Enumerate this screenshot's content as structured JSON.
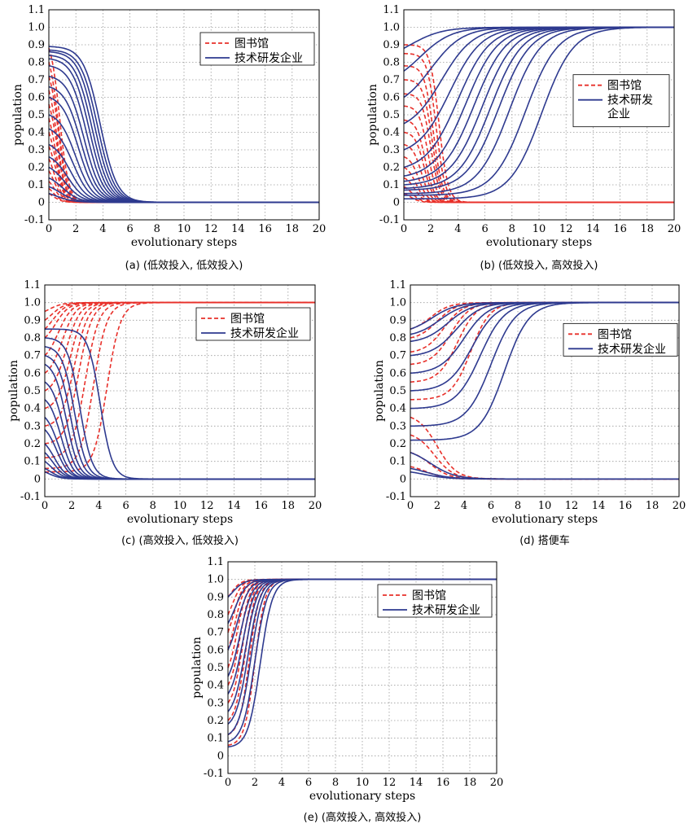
{
  "colors": {
    "library": "#e8302a",
    "enterprise": "#2e3a8f",
    "grid": "#9a9a9a"
  },
  "chart_data": [
    {
      "type": "line",
      "caption": "(a) (低效投入, 低效投入)",
      "xlabel": "evolutionary steps",
      "ylabel": "population",
      "xlim": [
        0,
        20
      ],
      "ylim": [
        -0.1,
        1.1
      ],
      "xticks": [
        "0",
        "2",
        "4",
        "6",
        "8",
        "10",
        "12",
        "14",
        "16",
        "18",
        "20"
      ],
      "yticks": [
        "-0.1",
        "0",
        "0.1",
        "0.2",
        "0.3",
        "0.4",
        "0.5",
        "0.6",
        "0.7",
        "0.8",
        "0.9",
        "1.0",
        "1.1"
      ],
      "grid": true,
      "legend_position": "top-right",
      "series": [
        {
          "name": "图书馆",
          "style": "dashed",
          "starts": [
            0.88,
            0.8,
            0.72,
            0.64,
            0.56,
            0.48,
            0.4,
            0.32,
            0.25,
            0.18,
            0.12,
            0.08,
            0.05
          ],
          "ends": [
            0,
            0,
            0,
            0,
            0,
            0,
            0,
            0,
            0,
            0,
            0,
            0,
            0
          ],
          "x_mid": [
            0.8,
            0.7,
            0.7,
            0.6,
            0.6,
            0.5,
            0.5,
            0.5,
            0.4,
            0.4,
            0.4,
            0.3,
            0.3
          ],
          "k": 3
        },
        {
          "name": "技术研发企业",
          "style": "solid",
          "starts": [
            0.89,
            0.87,
            0.86,
            0.84,
            0.82,
            0.78,
            0.72,
            0.66,
            0.6,
            0.5,
            0.42,
            0.33,
            0.26,
            0.2,
            0.14,
            0.09,
            0.05
          ],
          "ends": [
            0,
            0,
            0,
            0,
            0,
            0,
            0,
            0,
            0,
            0,
            0,
            0,
            0,
            0,
            0,
            0,
            0
          ],
          "x_mid": [
            3.8,
            3.6,
            3.4,
            3.2,
            3.0,
            2.8,
            2.6,
            2.4,
            2.2,
            2.0,
            1.8,
            1.6,
            1.4,
            1.2,
            1.0,
            0.8,
            0.6
          ],
          "k": 1.6
        }
      ]
    },
    {
      "type": "line",
      "caption": "(b) (低效投入, 高效投入)",
      "xlabel": "evolutionary steps",
      "ylabel": "population",
      "xlim": [
        0,
        20
      ],
      "ylim": [
        -0.1,
        1.1
      ],
      "xticks": [
        "0",
        "2",
        "4",
        "6",
        "8",
        "10",
        "12",
        "14",
        "16",
        "18",
        "20"
      ],
      "yticks": [
        "-0.1",
        "0",
        "0.1",
        "0.2",
        "0.3",
        "0.4",
        "0.5",
        "0.6",
        "0.7",
        "0.8",
        "0.9",
        "1.0",
        "1.1"
      ],
      "grid": true,
      "legend_position": "right",
      "series": [
        {
          "name": "图书馆",
          "style": "dashed",
          "starts": [
            0.9,
            0.85,
            0.78,
            0.7,
            0.62,
            0.55,
            0.47,
            0.4,
            0.33,
            0.26,
            0.2,
            0.14,
            0.09,
            0.05
          ],
          "ends": [
            0,
            0,
            0,
            0,
            0,
            0,
            0,
            0,
            0,
            0,
            0,
            0,
            0,
            0
          ],
          "x_mid": [
            2.6,
            2.4,
            2.2,
            2.1,
            2.0,
            1.8,
            1.6,
            1.5,
            1.3,
            1.1,
            0.9,
            0.8,
            0.6,
            0.5
          ],
          "k": 3
        },
        {
          "name": "技术研发企业",
          "style": "solid",
          "starts": [
            0.02,
            0.04,
            0.05,
            0.07,
            0.08,
            0.1,
            0.12,
            0.15,
            0.2,
            0.3,
            0.45,
            0.6,
            0.75,
            0.88
          ],
          "ends": [
            1,
            1,
            1,
            1,
            1,
            1,
            1,
            1,
            1,
            1,
            1,
            1,
            1,
            1
          ],
          "x_mid": [
            10.2,
            9.0,
            7.8,
            7.0,
            6.4,
            5.8,
            5.2,
            4.6,
            4.0,
            3.4,
            2.8,
            2.0,
            1.2,
            0.5
          ],
          "k": 0.85
        }
      ],
      "legend_labels_wrapped": [
        "技术研发",
        "企业"
      ]
    },
    {
      "type": "line",
      "caption": "(c) (高效投入, 低效投入)",
      "xlabel": "evolutionary steps",
      "ylabel": "population",
      "xlim": [
        0,
        20
      ],
      "ylim": [
        -0.1,
        1.1
      ],
      "xticks": [
        "0",
        "2",
        "4",
        "6",
        "8",
        "10",
        "12",
        "14",
        "16",
        "18",
        "20"
      ],
      "yticks": [
        "-0.1",
        "0",
        "0.1",
        "0.2",
        "0.3",
        "0.4",
        "0.5",
        "0.6",
        "0.7",
        "0.8",
        "0.9",
        "1.0",
        "1.1"
      ],
      "grid": true,
      "legend_position": "top-right",
      "series": [
        {
          "name": "图书馆",
          "style": "dashed",
          "starts": [
            0.95,
            0.9,
            0.85,
            0.8,
            0.7,
            0.6,
            0.5,
            0.4,
            0.3,
            0.2,
            0.12,
            0.06,
            0.04
          ],
          "ends": [
            1,
            1,
            1,
            1,
            1,
            1,
            1,
            1,
            1,
            1,
            1,
            1,
            1
          ],
          "x_mid": [
            0.3,
            0.5,
            0.6,
            0.8,
            1.0,
            1.3,
            1.6,
            1.9,
            2.2,
            2.5,
            3.0,
            3.6,
            4.6
          ],
          "k": 2
        },
        {
          "name": "技术研发企业",
          "style": "solid",
          "starts": [
            0.85,
            0.8,
            0.75,
            0.7,
            0.65,
            0.55,
            0.45,
            0.35,
            0.28,
            0.2,
            0.15,
            0.1,
            0.06,
            0.04
          ],
          "ends": [
            0,
            0,
            0,
            0,
            0,
            0,
            0,
            0,
            0,
            0,
            0,
            0,
            0,
            0
          ],
          "x_mid": [
            4.1,
            2.6,
            2.2,
            1.9,
            1.6,
            1.4,
            1.2,
            1.0,
            0.9,
            0.7,
            0.6,
            0.5,
            0.4,
            0.3
          ],
          "k": 2.2
        }
      ]
    },
    {
      "type": "line",
      "caption": "(d) 搭便车",
      "xlabel": "evolutionary steps",
      "ylabel": "population",
      "xlim": [
        0,
        20
      ],
      "ylim": [
        -0.1,
        1.1
      ],
      "xticks": [
        "0",
        "2",
        "4",
        "6",
        "8",
        "10",
        "12",
        "14",
        "16",
        "18",
        "20"
      ],
      "yticks": [
        "-0.1",
        "0",
        "0.1",
        "0.2",
        "0.3",
        "0.4",
        "0.5",
        "0.6",
        "0.7",
        "0.8",
        "0.9",
        "1.0",
        "1.1"
      ],
      "grid": true,
      "legend_position": "right",
      "series": [
        {
          "name": "图书馆",
          "style": "dashed",
          "starts": [
            0.85,
            0.8,
            0.72,
            0.65,
            0.55,
            0.45,
            0.35,
            0.25,
            0.15,
            0.07
          ],
          "ends": [
            1,
            1,
            1,
            1,
            1,
            1,
            0,
            0,
            0,
            0
          ],
          "x_mid": [
            1.5,
            2.0,
            2.5,
            3.0,
            3.5,
            4.5,
            2.0,
            1.8,
            1.5,
            1.2
          ],
          "k": 1.4
        },
        {
          "name": "技术研发企业",
          "style": "solid",
          "starts": [
            0.85,
            0.82,
            0.78,
            0.7,
            0.6,
            0.5,
            0.4,
            0.3,
            0.22,
            0.15,
            0.06,
            0.04
          ],
          "ends": [
            1,
            1,
            1,
            1,
            1,
            1,
            1,
            1,
            1,
            0,
            0,
            0
          ],
          "x_mid": [
            1.6,
            2.2,
            2.8,
            3.4,
            4.0,
            4.6,
            5.2,
            6.0,
            7.0,
            1.5,
            1.2,
            1.0
          ],
          "k": 1.1
        }
      ]
    },
    {
      "type": "line",
      "caption": "(e) (高效投入, 高效投入)",
      "xlabel": "evolutionary steps",
      "ylabel": "population",
      "xlim": [
        0,
        20
      ],
      "ylim": [
        -0.1,
        1.1
      ],
      "xticks": [
        "0",
        "2",
        "4",
        "6",
        "8",
        "10",
        "12",
        "14",
        "16",
        "18",
        "20"
      ],
      "yticks": [
        "-0.1",
        "0",
        "0.1",
        "0.2",
        "0.3",
        "0.4",
        "0.5",
        "0.6",
        "0.7",
        "0.8",
        "0.9",
        "1.0",
        "1.1"
      ],
      "grid": true,
      "legend_position": "top-right",
      "series": [
        {
          "name": "图书馆",
          "style": "dashed",
          "starts": [
            0.9,
            0.8,
            0.7,
            0.6,
            0.5,
            0.4,
            0.3,
            0.2,
            0.12,
            0.06
          ],
          "ends": [
            1,
            1,
            1,
            1,
            1,
            1,
            1,
            1,
            1,
            1
          ],
          "x_mid": [
            0.2,
            0.3,
            0.4,
            0.5,
            0.7,
            0.9,
            1.1,
            1.3,
            1.6,
            2.0
          ],
          "k": 2.6
        },
        {
          "name": "技术研发企业",
          "style": "solid",
          "starts": [
            0.9,
            0.75,
            0.6,
            0.45,
            0.35,
            0.25,
            0.18,
            0.12,
            0.08,
            0.05
          ],
          "ends": [
            1,
            1,
            1,
            1,
            1,
            1,
            1,
            1,
            1,
            1
          ],
          "x_mid": [
            0.3,
            0.5,
            0.7,
            0.9,
            1.1,
            1.3,
            1.5,
            1.7,
            2.0,
            2.4
          ],
          "k": 2.2
        }
      ]
    }
  ]
}
